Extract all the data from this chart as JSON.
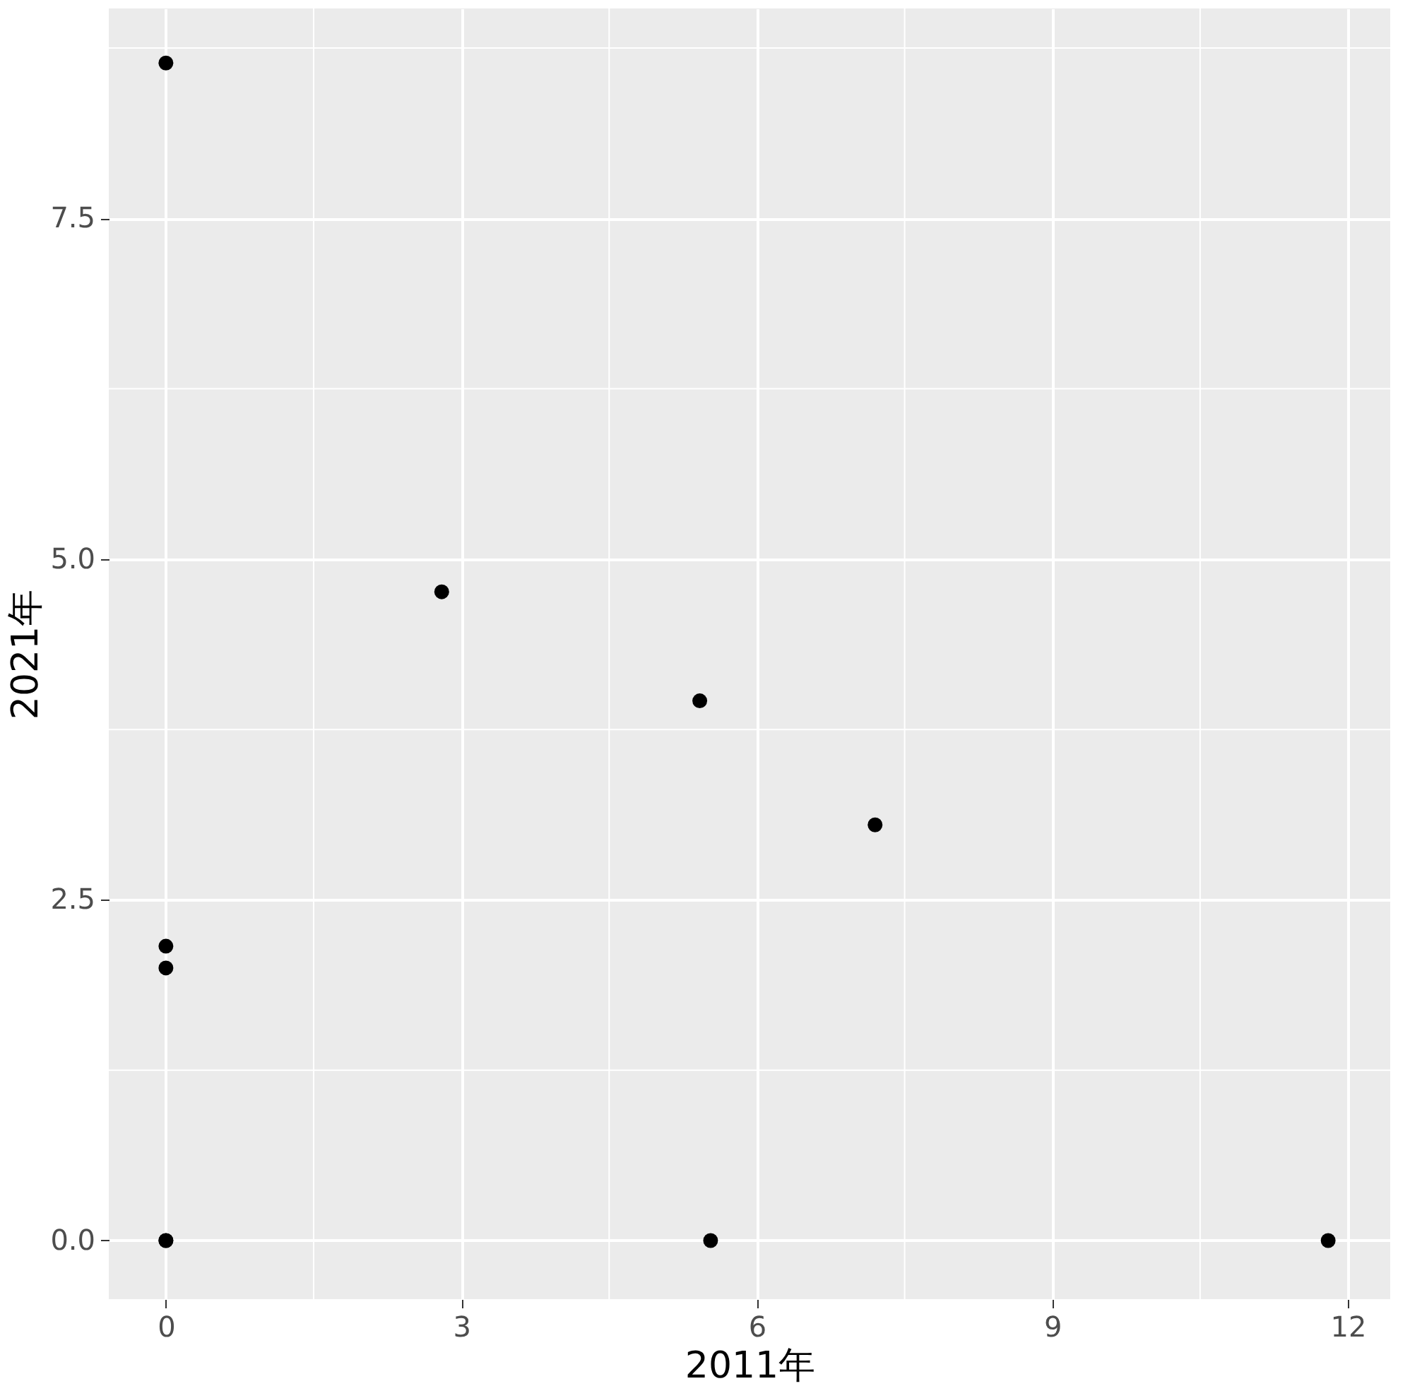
{
  "chart_data": {
    "type": "scatter",
    "xlabel": "2011年",
    "ylabel": "2021年",
    "x": [
      0,
      2.8,
      5.42,
      7.2,
      0,
      0,
      0,
      5.53,
      11.8,
      0
    ],
    "values": [
      8.64,
      4.76,
      3.96,
      3.05,
      2.16,
      2.0,
      0,
      0,
      0,
      0
    ],
    "color": "#000000",
    "marker": "circle",
    "xlim": [
      -0.58,
      12.43
    ],
    "ylim": [
      -0.43,
      9.04
    ],
    "xticks": [
      0,
      3,
      6,
      9,
      12
    ],
    "yticks": [
      {
        "value": 0,
        "label": "0.0"
      },
      {
        "value": 2.5,
        "label": "2.5"
      },
      {
        "value": 5,
        "label": "5.0"
      },
      {
        "value": 7.5,
        "label": "7.5"
      }
    ],
    "grid": true,
    "legend": false
  }
}
